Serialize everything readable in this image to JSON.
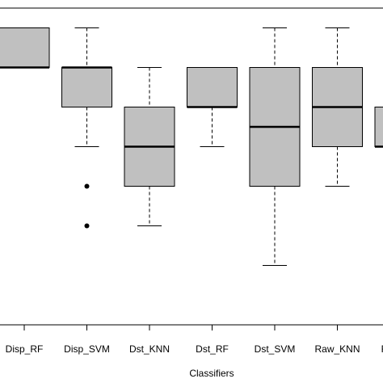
{
  "chart_data": {
    "type": "boxplot",
    "title": "",
    "xlabel": "Classifiers",
    "ylabel": "",
    "categories": [
      "Disp_RF",
      "Disp_SVM",
      "Dst_KNN",
      "Dst_RF",
      "Dst_SVM",
      "Raw_KNN",
      "Raw_RF"
    ],
    "ylim": [
      0.25,
      1.05
    ],
    "grid": false,
    "box_fill": "#c0c0c0",
    "line_color": "#000000",
    "boxes": [
      {
        "whisker_low": 0.9,
        "q1": 0.9,
        "median": 0.9,
        "q3": 1.0,
        "whisker_high": 1.0,
        "outliers": []
      },
      {
        "whisker_low": 0.7,
        "q1": 0.8,
        "median": 0.9,
        "q3": 0.9,
        "whisker_high": 1.0,
        "outliers": [
          0.6,
          0.5
        ]
      },
      {
        "whisker_low": 0.5,
        "q1": 0.6,
        "median": 0.7,
        "q3": 0.8,
        "whisker_high": 0.9,
        "outliers": []
      },
      {
        "whisker_low": 0.7,
        "q1": 0.8,
        "median": 0.8,
        "q3": 0.9,
        "whisker_high": 0.9,
        "outliers": []
      },
      {
        "whisker_low": 0.4,
        "q1": 0.6,
        "median": 0.75,
        "q3": 0.9,
        "whisker_high": 1.0,
        "outliers": []
      },
      {
        "whisker_low": 0.6,
        "q1": 0.7,
        "median": 0.8,
        "q3": 0.9,
        "whisker_high": 1.0,
        "outliers": []
      },
      {
        "whisker_low": 0.7,
        "q1": 0.7,
        "median": 0.7,
        "q3": 0.8,
        "whisker_high": 0.8,
        "outliers": []
      }
    ]
  }
}
